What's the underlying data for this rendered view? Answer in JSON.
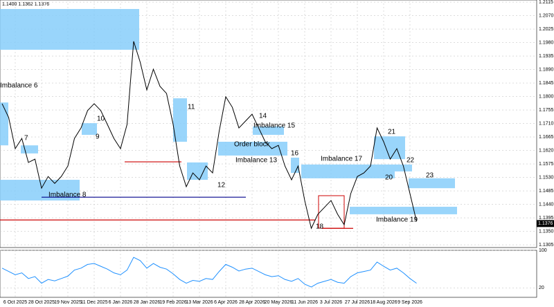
{
  "chart_data": {
    "type": "line",
    "header": "1.1400 1.1362 1.1376",
    "categories": [
      null,
      null,
      "6 Oct 2025",
      null,
      null,
      null,
      "28 Oct 2025",
      null,
      null,
      null,
      "19 Nov 2025",
      null,
      null,
      null,
      "11 Dec 2025",
      null,
      null,
      null,
      "6 Jan 2026",
      null,
      null,
      null,
      "28 Jan 2026",
      null,
      null,
      null,
      "19 Feb 2026",
      null,
      null,
      null,
      "13 Mar 2026",
      null,
      null,
      null,
      "6 Apr 2026",
      null,
      null,
      null,
      "28 Apr 2026",
      null,
      null,
      null,
      "20 May 2026",
      null,
      null,
      null,
      "11 Jun 2026",
      null,
      null,
      null,
      "3 Jul 2026",
      null,
      null,
      null,
      "27 Jul 2026",
      null,
      null,
      null,
      "18 Aug 2026",
      null,
      null,
      null,
      "9 Sep 2026",
      null
    ],
    "values": [
      1.1776,
      1.173,
      1.1626,
      1.166,
      1.158,
      1.1591,
      1.1494,
      1.1533,
      1.151,
      1.1533,
      1.1568,
      1.166,
      1.1695,
      1.1753,
      1.1776,
      1.1753,
      1.1707,
      1.166,
      1.1626,
      1.1707,
      1.1984,
      1.1914,
      1.1822,
      1.1891,
      1.1834,
      1.181,
      1.1707,
      1.1568,
      1.1499,
      1.1545,
      1.1522,
      1.1568,
      1.1545,
      1.1684,
      1.1799,
      1.1764,
      1.1695,
      1.1718,
      1.1741,
      1.1695,
      1.1649,
      1.1626,
      1.1637,
      1.1568,
      1.1522,
      1.1568,
      1.1453,
      1.136,
      1.1407,
      1.143,
      1.1453,
      1.1407,
      1.1372,
      1.1476,
      1.1533,
      1.1545,
      1.1568,
      1.1695,
      1.1649,
      1.1591,
      1.1626,
      1.1568,
      1.1476,
      1.1383
    ],
    "color": "#000000",
    "ylim": [
      1.1296,
      1.2122
    ],
    "yticks": [
      {
        "value": 1.1305,
        "label": "1.1305"
      },
      {
        "value": 1.135,
        "label": "1.1350"
      },
      1.1395,
      {
        "value": 1.144,
        "label": "1.1440"
      },
      1.1485,
      {
        "value": 1.153,
        "label": "1.1530"
      },
      1.1575,
      {
        "value": 1.162,
        "label": "1.1620"
      },
      1.1665,
      {
        "value": 1.171,
        "label": "1.1710"
      },
      1.1755,
      {
        "value": 1.18,
        "label": "1.1800"
      },
      1.1845,
      {
        "value": 1.189,
        "label": "1.1890"
      },
      1.1935,
      {
        "value": 1.198,
        "label": "1.1980"
      },
      1.2025,
      {
        "value": 1.207,
        "label": "1.2070"
      },
      1.2115
    ],
    "grid": true,
    "last_price": 1.1376,
    "zones": [
      {
        "high": 1.2092,
        "low": 1.1956
      },
      {
        "high": 1.178,
        "low": 1.1637
      },
      {
        "high": 1.1637,
        "low": 1.161
      },
      {
        "high": 1.1522,
        "low": 1.1453
      },
      {
        "high": 1.1711,
        "low": 1.1672
      },
      {
        "high": 1.1794,
        "low": 1.1649
      },
      {
        "high": 1.158,
        "low": 1.1522
      },
      {
        "high": 1.1649,
        "low": 1.1603
      },
      {
        "high": 1.17,
        "low": 1.1672
      },
      {
        "high": 1.1596,
        "low": 1.1545
      },
      {
        "high": 1.1573,
        "low": 1.1527
      },
      {
        "high": 1.1667,
        "low": 1.1591
      },
      {
        "high": 1.1573,
        "low": 1.155
      },
      {
        "high": 1.1527,
        "low": 1.1494
      },
      {
        "high": 1.1432,
        "low": 1.1407
      }
    ],
    "levels": [
      {
        "value": 1.1388,
        "color": "#cc0000"
      },
      {
        "value": 1.1582,
        "color": "#cc0000"
      },
      {
        "value": 1.1464,
        "color": "#00008b"
      },
      {
        "value": 1.136,
        "color": "#cc0000"
      }
    ],
    "labels": [
      "Imbalance 6",
      "7",
      "Imbalance 8",
      "9",
      "10",
      "11",
      "12",
      "14",
      "Imbalance 15",
      "Order block",
      "Imbalance 13",
      "16",
      "Imbalance 17",
      "21",
      "22",
      "20",
      "23",
      "Imbalance 19",
      "18"
    ],
    "oscillator": {
      "values": [
        62,
        55,
        48,
        52,
        40,
        44,
        30,
        38,
        35,
        40,
        45,
        58,
        62,
        70,
        72,
        66,
        60,
        52,
        48,
        58,
        85,
        78,
        62,
        72,
        64,
        60,
        50,
        38,
        30,
        36,
        34,
        40,
        38,
        55,
        70,
        64,
        56,
        60,
        62,
        55,
        48,
        44,
        46,
        38,
        34,
        40,
        28,
        22,
        30,
        34,
        38,
        32,
        30,
        44,
        52,
        55,
        58,
        75,
        66,
        58,
        62,
        52,
        40,
        30
      ],
      "color": "#1e90ff",
      "ylim": [
        0,
        100
      ],
      "yticks": [
        100,
        20
      ]
    }
  }
}
